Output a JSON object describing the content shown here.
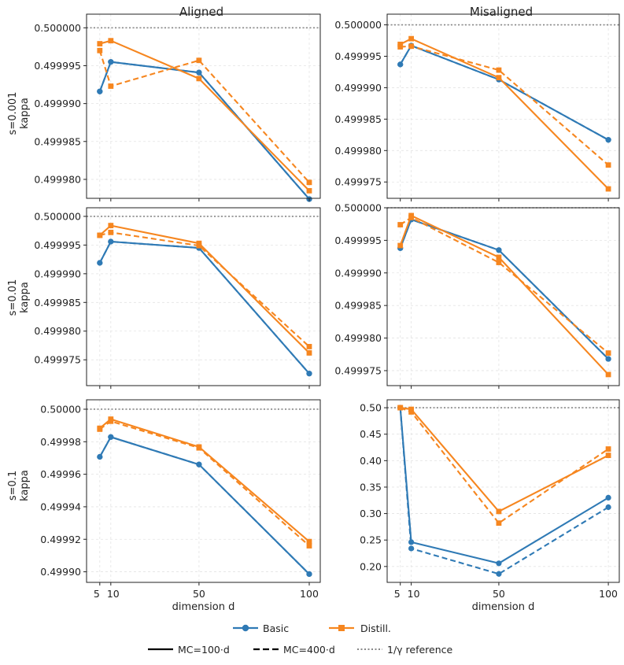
{
  "figure": {
    "col_titles": [
      "Aligned",
      "Misaligned"
    ],
    "row_ylabels": [
      [
        "s=0.001",
        "kappa"
      ],
      [
        "s=0.01",
        "kappa"
      ],
      [
        "s=0.1",
        "kappa"
      ]
    ],
    "xlabel": "dimension d",
    "x_ticks": [
      5,
      10,
      50,
      100
    ],
    "x_tick_labels": [
      "5",
      "10",
      "50",
      "100"
    ],
    "x_range": [
      -1,
      105
    ]
  },
  "legend": {
    "series_entries": [
      {
        "label": "Basic",
        "color": "#2f7ab5",
        "marker": "circle"
      },
      {
        "label": "Distill.",
        "color": "#f6861f",
        "marker": "square"
      }
    ],
    "style_entries": [
      {
        "label": "MC=100·d",
        "dash": "solid",
        "color": "#000000"
      },
      {
        "label": "MC=400·d",
        "dash": "dashed",
        "color": "#000000"
      },
      {
        "label": "1/γ reference",
        "dash": "dotted",
        "color": "#888888"
      }
    ]
  },
  "colors": {
    "basic": "#2f7ab5",
    "distill": "#f6861f",
    "reference": "#888888",
    "grid": "#e3e3e3"
  },
  "chart_data": [
    {
      "type": "line",
      "row": 0,
      "col": 0,
      "title": "Aligned",
      "ylabel": "s=0.001 kappa",
      "xlabel": "",
      "x": [
        5,
        10,
        50,
        100
      ],
      "ylim": [
        0.4999775,
        0.5000018
      ],
      "reference": 0.5,
      "y_ticks": [
        0.49998,
        0.499985,
        0.49999,
        0.499995,
        0.5
      ],
      "y_tick_labels": [
        "0.499980",
        "0.499985",
        "0.499990",
        "0.499995",
        "0.500000"
      ],
      "series": [
        {
          "name": "Basic",
          "mc": "MC=100·d",
          "values": [
            0.4999916,
            0.4999955,
            0.4999941,
            0.4999774
          ]
        },
        {
          "name": "Basic",
          "mc": "MC=400·d",
          "values": [
            0.4999916,
            0.4999955,
            0.4999941,
            0.4999774
          ]
        },
        {
          "name": "Distill.",
          "mc": "MC=100·d",
          "values": [
            0.4999979,
            0.4999983,
            0.4999933,
            0.4999785
          ]
        },
        {
          "name": "Distill.",
          "mc": "MC=400·d",
          "values": [
            0.499997,
            0.4999923,
            0.4999957,
            0.4999796
          ]
        }
      ]
    },
    {
      "type": "line",
      "row": 0,
      "col": 1,
      "title": "Misaligned",
      "ylabel": "",
      "xlabel": "",
      "x": [
        5,
        10,
        50,
        100
      ],
      "ylim": [
        0.4999724,
        0.5000017
      ],
      "reference": 0.5,
      "y_ticks": [
        0.499975,
        0.49998,
        0.499985,
        0.49999,
        0.499995,
        0.5
      ],
      "y_tick_labels": [
        "0.499975",
        "0.499980",
        "0.499985",
        "0.499990",
        "0.499995",
        "0.500000"
      ],
      "series": [
        {
          "name": "Basic",
          "mc": "MC=100·d",
          "values": [
            0.4999937,
            0.4999967,
            0.4999913,
            0.4999817
          ]
        },
        {
          "name": "Basic",
          "mc": "MC=400·d",
          "values": [
            0.4999937,
            0.4999967,
            0.4999913,
            0.4999817
          ]
        },
        {
          "name": "Distill.",
          "mc": "MC=100·d",
          "values": [
            0.4999969,
            0.4999978,
            0.4999916,
            0.4999739
          ]
        },
        {
          "name": "Distill.",
          "mc": "MC=400·d",
          "values": [
            0.4999965,
            0.4999966,
            0.4999928,
            0.4999777
          ]
        }
      ]
    },
    {
      "type": "line",
      "row": 1,
      "col": 0,
      "title": "",
      "ylabel": "s=0.01 kappa",
      "xlabel": "",
      "x": [
        5,
        10,
        50,
        100
      ],
      "ylim": [
        0.4999705,
        0.5000015
      ],
      "reference": 0.5,
      "y_ticks": [
        0.499975,
        0.49998,
        0.499985,
        0.49999,
        0.499995,
        0.5
      ],
      "y_tick_labels": [
        "0.499975",
        "0.499980",
        "0.499985",
        "0.499990",
        "0.499995",
        "0.500000"
      ],
      "series": [
        {
          "name": "Basic",
          "mc": "MC=100·d",
          "values": [
            0.4999919,
            0.4999956,
            0.4999945,
            0.4999726
          ]
        },
        {
          "name": "Basic",
          "mc": "MC=400·d",
          "values": [
            0.4999919,
            0.4999956,
            0.4999945,
            0.4999726
          ]
        },
        {
          "name": "Distill.",
          "mc": "MC=100·d",
          "values": [
            0.4999967,
            0.4999984,
            0.4999953,
            0.4999762
          ]
        },
        {
          "name": "Distill.",
          "mc": "MC=400·d",
          "values": [
            0.4999967,
            0.4999972,
            0.4999949,
            0.4999773
          ]
        }
      ]
    },
    {
      "type": "line",
      "row": 1,
      "col": 1,
      "title": "",
      "ylabel": "",
      "xlabel": "",
      "x": [
        5,
        10,
        50,
        100
      ],
      "ylim": [
        0.4999727,
        0.5
      ],
      "reference": 0.5,
      "y_ticks": [
        0.499975,
        0.49998,
        0.499985,
        0.49999,
        0.499995,
        0.5
      ],
      "y_tick_labels": [
        "0.499975",
        "0.499980",
        "0.499985",
        "0.499990",
        "0.499995",
        "0.500000"
      ],
      "series": [
        {
          "name": "Basic",
          "mc": "MC=100·d",
          "values": [
            0.4999938,
            0.4999982,
            0.4999935,
            0.4999768
          ]
        },
        {
          "name": "Basic",
          "mc": "MC=400·d",
          "values": [
            0.4999938,
            0.4999982,
            0.4999935,
            0.4999768
          ]
        },
        {
          "name": "Distill.",
          "mc": "MC=100·d",
          "values": [
            0.4999942,
            0.4999988,
            0.4999924,
            0.4999744
          ]
        },
        {
          "name": "Distill.",
          "mc": "MC=400·d",
          "values": [
            0.4999974,
            0.4999985,
            0.4999916,
            0.4999777
          ]
        }
      ]
    },
    {
      "type": "line",
      "row": 2,
      "col": 0,
      "title": "",
      "ylabel": "s=0.1 kappa",
      "xlabel": "dimension d",
      "x": [
        5,
        10,
        50,
        100
      ],
      "ylim": [
        0.4998935,
        0.5000058
      ],
      "reference": 0.5,
      "y_ticks": [
        0.4999,
        0.49992,
        0.49994,
        0.49996,
        0.49998,
        0.5
      ],
      "y_tick_labels": [
        "0.49990",
        "0.49992",
        "0.49994",
        "0.49996",
        "0.49998",
        "0.50000"
      ],
      "series": [
        {
          "name": "Basic",
          "mc": "MC=100·d",
          "values": [
            0.4999707,
            0.4999829,
            0.499966,
            0.4998986
          ]
        },
        {
          "name": "Basic",
          "mc": "MC=400·d",
          "values": [
            0.4999707,
            0.4999829,
            0.499966,
            0.4998986
          ]
        },
        {
          "name": "Distill.",
          "mc": "MC=100·d",
          "values": [
            0.4999883,
            0.4999939,
            0.4999768,
            0.4999186
          ]
        },
        {
          "name": "Distill.",
          "mc": "MC=400·d",
          "values": [
            0.4999877,
            0.4999926,
            0.4999762,
            0.499916
          ]
        }
      ]
    },
    {
      "type": "line",
      "row": 2,
      "col": 1,
      "title": "",
      "ylabel": "",
      "xlabel": "dimension d",
      "x": [
        5,
        10,
        50,
        100
      ],
      "ylim": [
        0.17,
        0.515
      ],
      "reference": 0.5,
      "y_ticks": [
        0.2,
        0.25,
        0.3,
        0.35,
        0.4,
        0.45,
        0.5
      ],
      "y_tick_labels": [
        "0.20",
        "0.25",
        "0.30",
        "0.35",
        "0.40",
        "0.45",
        "0.50"
      ],
      "series": [
        {
          "name": "Basic",
          "mc": "MC=100·d",
          "values": [
            0.5,
            0.246,
            0.206,
            0.33
          ]
        },
        {
          "name": "Basic",
          "mc": "MC=400·d",
          "values": [
            0.5,
            0.234,
            0.186,
            0.312
          ]
        },
        {
          "name": "Distill.",
          "mc": "MC=100·d",
          "values": [
            0.5,
            0.497,
            0.304,
            0.41
          ]
        },
        {
          "name": "Distill.",
          "mc": "MC=400·d",
          "values": [
            0.5,
            0.492,
            0.282,
            0.422
          ]
        }
      ]
    }
  ]
}
